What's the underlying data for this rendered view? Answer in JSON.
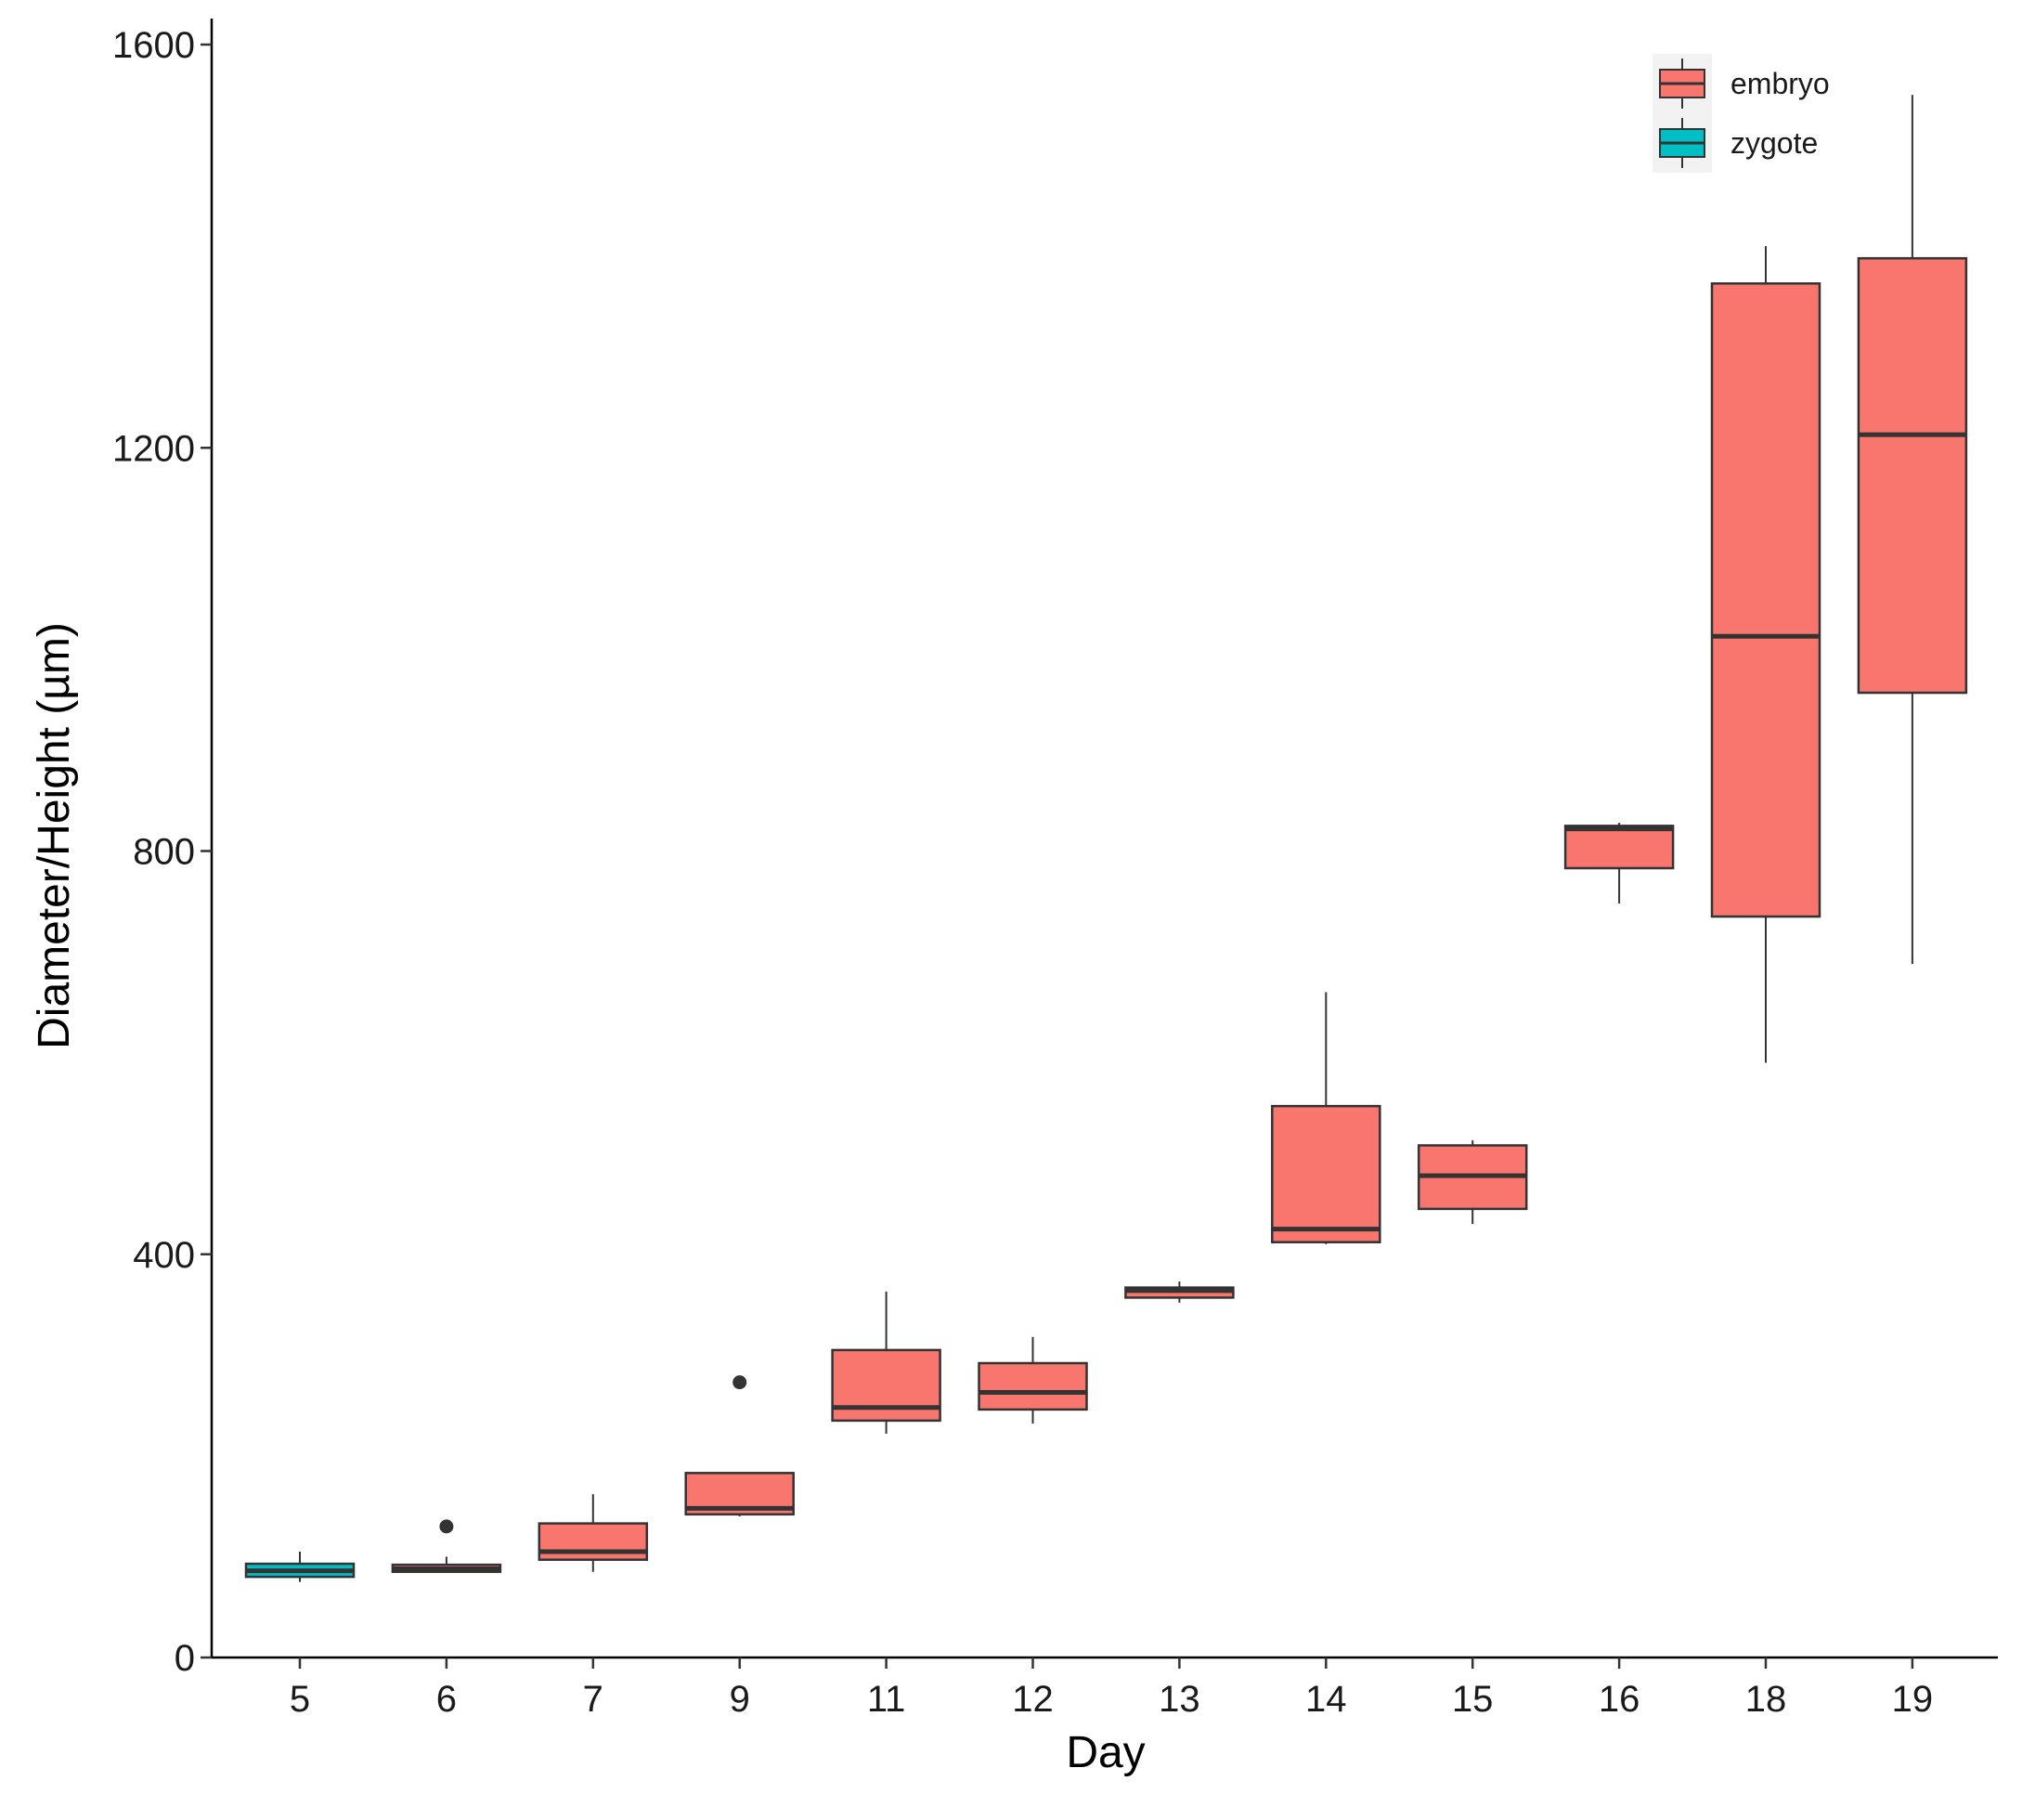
{
  "chart_data": {
    "type": "boxplot",
    "title": "",
    "xlabel": "Day",
    "ylabel": "Diameter/Height (µm)",
    "ylim": [
      0,
      1600
    ],
    "y_ticks": [
      0,
      400,
      800,
      1200,
      1600
    ],
    "grid": false,
    "legend_position": "top-right",
    "categories": [
      "5",
      "6",
      "7",
      "9",
      "11",
      "12",
      "13",
      "14",
      "15",
      "16",
      "18",
      "19"
    ],
    "series": [
      {
        "name": "embryo",
        "color": "#F8766D",
        "boxes": [
          {
            "category": "6",
            "whisker_low": 85,
            "q1": 85,
            "median": 88,
            "q3": 92,
            "whisker_high": 100,
            "outliers": [
              130
            ]
          },
          {
            "category": "7",
            "whisker_low": 85,
            "q1": 97,
            "median": 105,
            "q3": 133,
            "whisker_high": 162,
            "outliers": []
          },
          {
            "category": "9",
            "whisker_low": 140,
            "q1": 142,
            "median": 148,
            "q3": 183,
            "whisker_high": 183,
            "outliers": [
              273
            ]
          },
          {
            "category": "11",
            "whisker_low": 222,
            "q1": 235,
            "median": 248,
            "q3": 305,
            "whisker_high": 363,
            "outliers": []
          },
          {
            "category": "12",
            "whisker_low": 232,
            "q1": 246,
            "median": 263,
            "q3": 292,
            "whisker_high": 318,
            "outliers": []
          },
          {
            "category": "13",
            "whisker_low": 352,
            "q1": 357,
            "median": 364,
            "q3": 367,
            "whisker_high": 373,
            "outliers": []
          },
          {
            "category": "14",
            "whisker_low": 410,
            "q1": 412,
            "median": 425,
            "q3": 547,
            "whisker_high": 660,
            "outliers": []
          },
          {
            "category": "15",
            "whisker_low": 430,
            "q1": 445,
            "median": 478,
            "q3": 508,
            "whisker_high": 513,
            "outliers": []
          },
          {
            "category": "16",
            "whisker_low": 748,
            "q1": 783,
            "median": 822,
            "q3": 825,
            "whisker_high": 828,
            "outliers": []
          },
          {
            "category": "18",
            "whisker_low": 590,
            "q1": 735,
            "median": 1013,
            "q3": 1363,
            "whisker_high": 1400,
            "outliers": []
          },
          {
            "category": "19",
            "whisker_low": 688,
            "q1": 957,
            "median": 1213,
            "q3": 1388,
            "whisker_high": 1550,
            "outliers": []
          }
        ]
      },
      {
        "name": "zygote",
        "color": "#00BFC4",
        "boxes": [
          {
            "category": "5",
            "whisker_low": 75,
            "q1": 80,
            "median": 86,
            "q3": 93,
            "whisker_high": 105,
            "outliers": []
          }
        ]
      }
    ]
  }
}
